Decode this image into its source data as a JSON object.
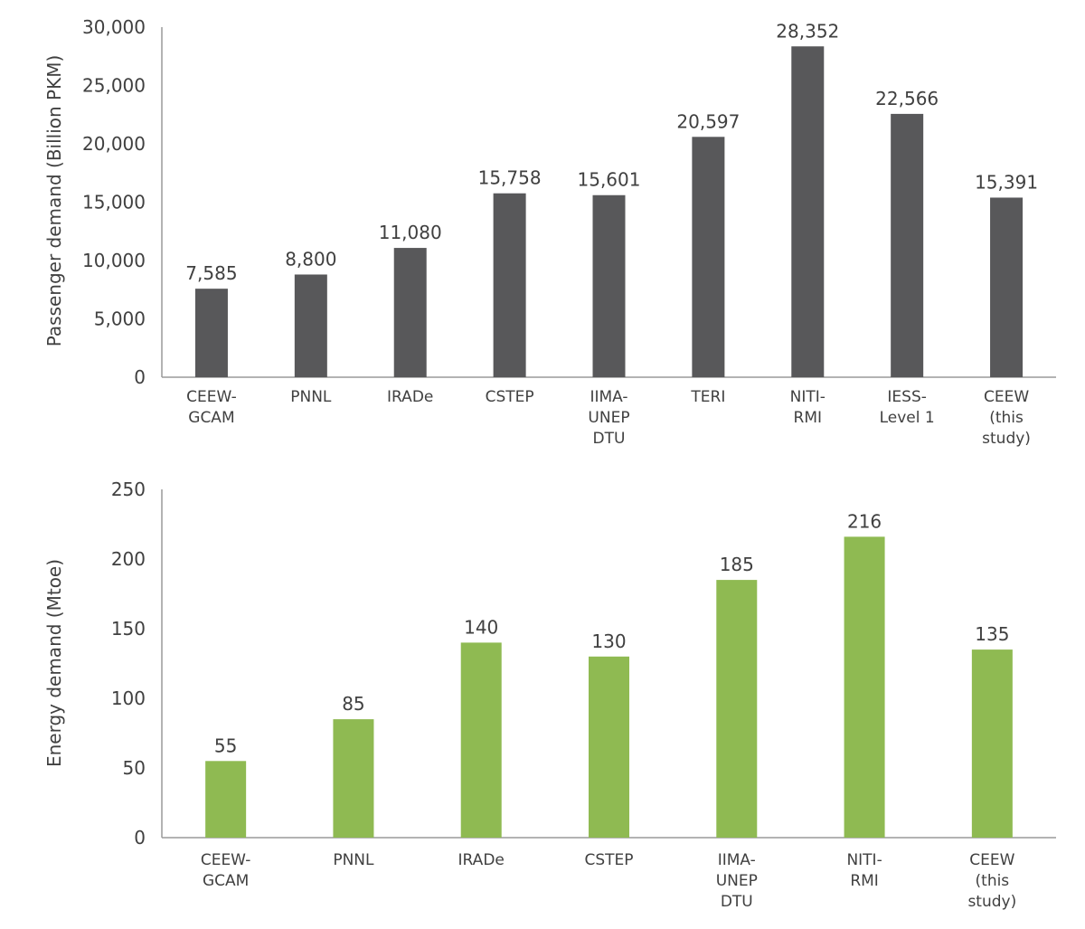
{
  "chart_data": [
    {
      "type": "bar",
      "title": "",
      "xlabel": "",
      "ylabel": "Passenger demand (Billion PKM)",
      "ylim": [
        0,
        30000
      ],
      "yticks": [
        "0",
        "5,000",
        "10,000",
        "15,000",
        "20,000",
        "25,000",
        "30,000"
      ],
      "categories": [
        [
          "CEEW-",
          "GCAM"
        ],
        [
          "PNNL"
        ],
        [
          "IRADe"
        ],
        [
          "CSTEP"
        ],
        [
          "IIMA-",
          "UNEP",
          "DTU"
        ],
        [
          "TERI"
        ],
        [
          "NITI-",
          "RMI"
        ],
        [
          "IESS-",
          "Level 1"
        ],
        [
          "CEEW",
          "(this",
          "study)"
        ]
      ],
      "values": [
        7585,
        8800,
        11080,
        15758,
        15601,
        20597,
        28352,
        22566,
        15391
      ],
      "value_labels": [
        "7,585",
        "8,800",
        "11,080",
        "15,758",
        "15,601",
        "20,597",
        "28,352",
        "22,566",
        "15,391"
      ],
      "bar_color": "#58585a",
      "grid": false
    },
    {
      "type": "bar",
      "title": "",
      "xlabel": "",
      "ylabel": "Energy demand (Mtoe)",
      "ylim": [
        0,
        250
      ],
      "yticks": [
        "0",
        "50",
        "100",
        "150",
        "200",
        "250"
      ],
      "categories": [
        [
          "CEEW-",
          "GCAM"
        ],
        [
          "PNNL"
        ],
        [
          "IRADe"
        ],
        [
          "CSTEP"
        ],
        [
          "IIMA-",
          "UNEP",
          "DTU"
        ],
        [
          "NITI-",
          "RMI"
        ],
        [
          "CEEW",
          "(this",
          "study)"
        ]
      ],
      "values": [
        55,
        85,
        140,
        130,
        185,
        216,
        135
      ],
      "value_labels": [
        "55",
        "85",
        "140",
        "130",
        "185",
        "216",
        "135"
      ],
      "bar_color": "#8fba52",
      "grid": false
    }
  ]
}
